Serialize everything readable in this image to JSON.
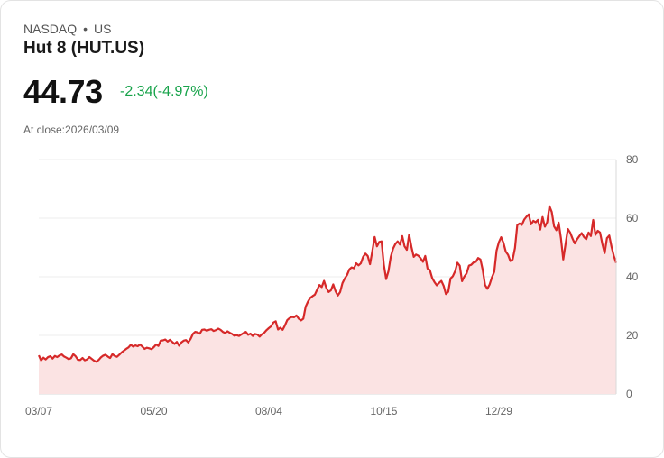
{
  "header": {
    "exchange": "NASDAQ",
    "separator": "•",
    "region": "US",
    "title": "Hut 8 (HUT.US)",
    "price": "44.73",
    "change": "-2.34(-4.97%)",
    "close_label": "At close:2026/03/09"
  },
  "colors": {
    "line": "#d62929",
    "fill": "#fbe3e3",
    "change": "#17a34a"
  },
  "chart_data": {
    "type": "area",
    "title": "Hut 8 (HUT.US)",
    "xlabel": "",
    "ylabel": "",
    "ylim": [
      0,
      80
    ],
    "yticks": [
      0,
      20,
      40,
      60,
      80
    ],
    "x_tick_labels": [
      "03/07",
      "05/20",
      "08/04",
      "10/15",
      "12/29"
    ],
    "x_tick_index": [
      0,
      50,
      100,
      150,
      200
    ],
    "grid": true,
    "values": [
      13.2,
      11.5,
      12.4,
      11.8,
      12.6,
      12.9,
      12.1,
      13.0,
      12.6,
      13.2,
      13.5,
      12.8,
      12.4,
      11.9,
      12.2,
      13.6,
      12.9,
      11.7,
      11.6,
      12.3,
      11.5,
      11.8,
      12.6,
      12.0,
      11.4,
      11.0,
      11.6,
      12.5,
      13.1,
      13.4,
      12.8,
      12.3,
      13.6,
      13.0,
      12.7,
      13.4,
      14.2,
      14.8,
      15.4,
      15.9,
      16.8,
      16.2,
      16.6,
      16.3,
      16.9,
      16.2,
      15.4,
      15.8,
      15.6,
      15.3,
      16.0,
      16.9,
      16.4,
      18.2,
      18.3,
      18.6,
      17.9,
      18.5,
      17.8,
      17.1,
      17.8,
      16.5,
      17.6,
      18.2,
      18.4,
      17.6,
      18.8,
      20.5,
      21.2,
      21.0,
      20.6,
      21.9,
      22.0,
      21.6,
      21.9,
      22.1,
      21.5,
      21.8,
      22.3,
      21.9,
      21.2,
      20.8,
      21.4,
      20.9,
      20.5,
      19.9,
      20.1,
      19.8,
      20.3,
      20.8,
      21.2,
      20.2,
      20.6,
      19.8,
      20.5,
      20.3,
      19.6,
      20.4,
      20.9,
      21.8,
      22.5,
      23.1,
      24.4,
      24.8,
      22.0,
      22.6,
      21.9,
      23.4,
      25.2,
      25.9,
      26.3,
      26.2,
      26.8,
      25.7,
      25.1,
      25.7,
      29.8,
      31.5,
      32.8,
      33.4,
      33.9,
      35.6,
      37.2,
      36.5,
      38.6,
      36.2,
      34.8,
      35.4,
      37.4,
      35.1,
      33.6,
      34.8,
      37.8,
      39.4,
      40.6,
      42.5,
      43.2,
      42.9,
      44.6,
      43.9,
      44.6,
      46.8,
      47.9,
      47.1,
      44.3,
      48.8,
      53.6,
      50.4,
      51.9,
      52.1,
      44.1,
      39.2,
      41.9,
      46.8,
      49.6,
      51.2,
      52.1,
      51.0,
      53.9,
      50.4,
      49.2,
      54.4,
      50.2,
      46.8,
      47.6,
      47.2,
      46.3,
      45.1,
      47.1,
      42.8,
      42.3,
      39.6,
      38.2,
      37.1,
      37.9,
      38.6,
      36.9,
      34.1,
      34.9,
      39.4,
      40.2,
      41.9,
      44.8,
      43.8,
      38.5,
      40.1,
      41.2,
      43.8,
      44.1,
      44.9,
      45.1,
      46.4,
      45.9,
      42.3,
      37.2,
      35.9,
      37.4,
      39.8,
      41.7,
      48.9,
      51.8,
      53.5,
      51.6,
      48.6,
      47.5,
      45.4,
      45.9,
      49.8,
      57.6,
      58.2,
      57.7,
      59.5,
      60.5,
      61.3,
      57.9,
      59.1,
      58.6,
      59.4,
      56.1,
      60.4,
      57.1,
      58.6,
      64.1,
      62.1,
      57.2,
      55.9,
      58.5,
      53.1,
      45.9,
      51.2,
      56.3,
      55.1,
      53.1,
      51.4,
      52.8,
      53.9,
      54.9,
      53.6,
      52.8,
      55.1,
      53.9,
      59.4,
      54.3,
      55.7,
      55.1,
      51.2,
      48.1,
      53.2,
      54.1,
      50.2,
      47.1,
      44.73
    ]
  }
}
